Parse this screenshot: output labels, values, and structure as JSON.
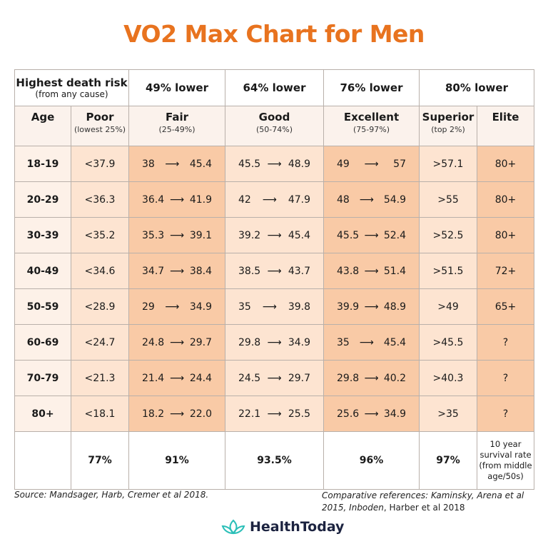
{
  "title": "VO2 Max Chart for Men",
  "header_top": {
    "risk_title": "Highest death risk",
    "risk_sub": "(from any cause)",
    "cols": [
      "49% lower",
      "64% lower",
      "76% lower",
      "80% lower"
    ]
  },
  "header_sub": [
    {
      "label": "Age",
      "sub": ""
    },
    {
      "label": "Poor",
      "sub": "(lowest 25%)"
    },
    {
      "label": "Fair",
      "sub": "(25-49%)"
    },
    {
      "label": "Good",
      "sub": "(50-74%)"
    },
    {
      "label": "Excellent",
      "sub": "(75-97%)"
    },
    {
      "label": "Superior",
      "sub": "(top 2%)"
    },
    {
      "label": "Elite",
      "sub": ""
    }
  ],
  "arrow": "⟶",
  "rows": [
    {
      "age": "18-19",
      "poor": "<37.9",
      "fair": [
        "38",
        "45.4"
      ],
      "good": [
        "45.5",
        "48.9"
      ],
      "excellent": [
        "49",
        "57"
      ],
      "superior": ">57.1",
      "elite": "80+"
    },
    {
      "age": "20-29",
      "poor": "<36.3",
      "fair": [
        "36.4",
        "41.9"
      ],
      "good": [
        "42",
        "47.9"
      ],
      "excellent": [
        "48",
        "54.9"
      ],
      "superior": ">55",
      "elite": "80+"
    },
    {
      "age": "30-39",
      "poor": "<35.2",
      "fair": [
        "35.3",
        "39.1"
      ],
      "good": [
        "39.2",
        "45.4"
      ],
      "excellent": [
        "45.5",
        "52.4"
      ],
      "superior": ">52.5",
      "elite": "80+"
    },
    {
      "age": "40-49",
      "poor": "<34.6",
      "fair": [
        "34.7",
        "38.4"
      ],
      "good": [
        "38.5",
        "43.7"
      ],
      "excellent": [
        "43.8",
        "51.4"
      ],
      "superior": ">51.5",
      "elite": "72+"
    },
    {
      "age": "50-59",
      "poor": "<28.9",
      "fair": [
        "29",
        "34.9"
      ],
      "good": [
        "35",
        "39.8"
      ],
      "excellent": [
        "39.9",
        "48.9"
      ],
      "superior": ">49",
      "elite": "65+"
    },
    {
      "age": "60-69",
      "poor": "<24.7",
      "fair": [
        "24.8",
        "29.7"
      ],
      "good": [
        "29.8",
        "34.9"
      ],
      "excellent": [
        "35",
        "45.4"
      ],
      "superior": ">45.5",
      "elite": "?"
    },
    {
      "age": "70-79",
      "poor": "<21.3",
      "fair": [
        "21.4",
        "24.4"
      ],
      "good": [
        "24.5",
        "29.7"
      ],
      "excellent": [
        "29.8",
        "40.2"
      ],
      "superior": ">40.3",
      "elite": "?"
    },
    {
      "age": "80+",
      "poor": "<18.1",
      "fair": [
        "18.2",
        "22.0"
      ],
      "good": [
        "22.1",
        "25.5"
      ],
      "excellent": [
        "25.6",
        "34.9"
      ],
      "superior": ">35",
      "elite": "?"
    }
  ],
  "survival": {
    "values": [
      "77%",
      "91%",
      "93.5%",
      "96%",
      "97%"
    ],
    "note": "10 year survival rate (from middle age/50s)"
  },
  "source": "Source: Mandsager, Harb, Cremer et al 2018.",
  "references": {
    "italic": "Comparative references: Kaminsky, Arena et al 2015, Inboden",
    "plain": ", Harber et al 2018"
  },
  "logo": "HealthToday",
  "colors": {
    "title": "#e8731f",
    "dark_cell": "#f9caa6",
    "light_cell": "#fde4d1",
    "logo_icon": "#2bbfb8"
  }
}
